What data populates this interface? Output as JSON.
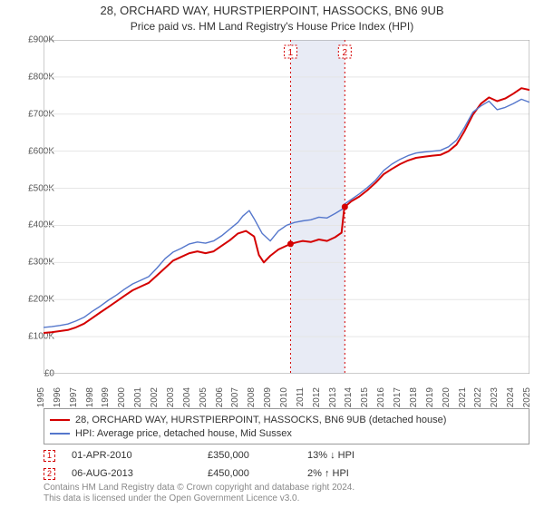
{
  "title": "28, ORCHARD WAY, HURSTPIERPOINT, HASSOCKS, BN6 9UB",
  "subtitle": "Price paid vs. HM Land Registry's House Price Index (HPI)",
  "chart": {
    "type": "line",
    "background_color": "#ffffff",
    "grid_color": "#e5e5e5",
    "axis_color": "#999999",
    "font_family": "Arial",
    "tick_fontsize": 10,
    "title_fontsize": 13,
    "subtitle_fontsize": 12,
    "x": {
      "min": 1995,
      "max": 2025,
      "ticks": [
        1995,
        1996,
        1997,
        1998,
        1999,
        2000,
        2001,
        2002,
        2003,
        2004,
        2005,
        2006,
        2007,
        2008,
        2009,
        2010,
        2011,
        2012,
        2013,
        2014,
        2015,
        2016,
        2017,
        2018,
        2019,
        2020,
        2021,
        2022,
        2023,
        2024,
        2025
      ],
      "label_rotation": -90
    },
    "y": {
      "min": 0,
      "max": 900000,
      "ticks": [
        0,
        100000,
        200000,
        300000,
        400000,
        500000,
        600000,
        700000,
        800000,
        900000
      ],
      "tick_labels": [
        "£0",
        "£100K",
        "£200K",
        "£300K",
        "£400K",
        "£500K",
        "£600K",
        "£700K",
        "£800K",
        "£900K"
      ]
    },
    "shaded_band": {
      "from": 2010.25,
      "to": 2013.6,
      "color": "#e8ebf5"
    },
    "series": [
      {
        "name": "28, ORCHARD WAY, HURSTPIERPOINT, HASSOCKS, BN6 9UB (detached house)",
        "color": "#d40000",
        "line_width": 2,
        "data": [
          [
            1995,
            110000
          ],
          [
            1995.5,
            112000
          ],
          [
            1996,
            115000
          ],
          [
            1996.5,
            118000
          ],
          [
            1997,
            125000
          ],
          [
            1997.5,
            135000
          ],
          [
            1998,
            150000
          ],
          [
            1998.5,
            165000
          ],
          [
            1999,
            180000
          ],
          [
            1999.5,
            195000
          ],
          [
            2000,
            210000
          ],
          [
            2000.5,
            225000
          ],
          [
            2001,
            235000
          ],
          [
            2001.5,
            245000
          ],
          [
            2002,
            265000
          ],
          [
            2002.5,
            285000
          ],
          [
            2003,
            305000
          ],
          [
            2003.5,
            315000
          ],
          [
            2004,
            325000
          ],
          [
            2004.5,
            330000
          ],
          [
            2005,
            325000
          ],
          [
            2005.5,
            330000
          ],
          [
            2006,
            345000
          ],
          [
            2006.5,
            360000
          ],
          [
            2007,
            378000
          ],
          [
            2007.5,
            385000
          ],
          [
            2008,
            370000
          ],
          [
            2008.3,
            320000
          ],
          [
            2008.6,
            300000
          ],
          [
            2009,
            318000
          ],
          [
            2009.5,
            335000
          ],
          [
            2010,
            345000
          ],
          [
            2010.25,
            350000
          ],
          [
            2010.7,
            355000
          ],
          [
            2011,
            358000
          ],
          [
            2011.5,
            355000
          ],
          [
            2012,
            362000
          ],
          [
            2012.5,
            358000
          ],
          [
            2013,
            368000
          ],
          [
            2013.4,
            380000
          ],
          [
            2013.55,
            440000
          ],
          [
            2013.6,
            450000
          ],
          [
            2014,
            465000
          ],
          [
            2014.5,
            478000
          ],
          [
            2015,
            495000
          ],
          [
            2015.5,
            515000
          ],
          [
            2016,
            538000
          ],
          [
            2016.5,
            552000
          ],
          [
            2017,
            565000
          ],
          [
            2017.5,
            575000
          ],
          [
            2018,
            582000
          ],
          [
            2018.5,
            585000
          ],
          [
            2019,
            588000
          ],
          [
            2019.5,
            590000
          ],
          [
            2020,
            600000
          ],
          [
            2020.5,
            618000
          ],
          [
            2021,
            655000
          ],
          [
            2021.5,
            698000
          ],
          [
            2022,
            728000
          ],
          [
            2022.5,
            745000
          ],
          [
            2023,
            735000
          ],
          [
            2023.5,
            742000
          ],
          [
            2024,
            755000
          ],
          [
            2024.5,
            770000
          ],
          [
            2025,
            765000
          ]
        ]
      },
      {
        "name": "HPI: Average price, detached house, Mid Sussex",
        "color": "#5577cc",
        "line_width": 1.4,
        "data": [
          [
            1995,
            125000
          ],
          [
            1995.5,
            127000
          ],
          [
            1996,
            130000
          ],
          [
            1996.5,
            134000
          ],
          [
            1997,
            142000
          ],
          [
            1997.5,
            152000
          ],
          [
            1998,
            168000
          ],
          [
            1998.5,
            182000
          ],
          [
            1999,
            198000
          ],
          [
            1999.5,
            212000
          ],
          [
            2000,
            228000
          ],
          [
            2000.5,
            242000
          ],
          [
            2001,
            252000
          ],
          [
            2001.5,
            262000
          ],
          [
            2002,
            285000
          ],
          [
            2002.5,
            310000
          ],
          [
            2003,
            328000
          ],
          [
            2003.5,
            338000
          ],
          [
            2004,
            350000
          ],
          [
            2004.5,
            355000
          ],
          [
            2005,
            352000
          ],
          [
            2005.5,
            358000
          ],
          [
            2006,
            372000
          ],
          [
            2006.5,
            390000
          ],
          [
            2007,
            408000
          ],
          [
            2007.3,
            425000
          ],
          [
            2007.7,
            440000
          ],
          [
            2008,
            418000
          ],
          [
            2008.5,
            378000
          ],
          [
            2009,
            358000
          ],
          [
            2009.5,
            385000
          ],
          [
            2010,
            400000
          ],
          [
            2010.5,
            408000
          ],
          [
            2011,
            412000
          ],
          [
            2011.5,
            415000
          ],
          [
            2012,
            422000
          ],
          [
            2012.5,
            420000
          ],
          [
            2013,
            432000
          ],
          [
            2013.5,
            445000
          ],
          [
            2013.6,
            458000
          ],
          [
            2014,
            470000
          ],
          [
            2014.5,
            485000
          ],
          [
            2015,
            502000
          ],
          [
            2015.5,
            522000
          ],
          [
            2016,
            548000
          ],
          [
            2016.5,
            565000
          ],
          [
            2017,
            578000
          ],
          [
            2017.5,
            588000
          ],
          [
            2018,
            595000
          ],
          [
            2018.5,
            598000
          ],
          [
            2019,
            600000
          ],
          [
            2019.5,
            602000
          ],
          [
            2020,
            612000
          ],
          [
            2020.5,
            630000
          ],
          [
            2021,
            665000
          ],
          [
            2021.5,
            705000
          ],
          [
            2022,
            722000
          ],
          [
            2022.5,
            735000
          ],
          [
            2023,
            712000
          ],
          [
            2023.5,
            718000
          ],
          [
            2024,
            728000
          ],
          [
            2024.5,
            740000
          ],
          [
            2025,
            732000
          ]
        ]
      }
    ],
    "sale_markers": [
      {
        "label": "1",
        "x": 2010.25,
        "y": 350000
      },
      {
        "label": "2",
        "x": 2013.6,
        "y": 450000
      }
    ]
  },
  "legend": {
    "border_color": "#999999",
    "items": [
      {
        "color": "#d40000",
        "text": "28, ORCHARD WAY, HURSTPIERPOINT, HASSOCKS, BN6 9UB (detached house)"
      },
      {
        "color": "#5577cc",
        "text": "HPI: Average price, detached house, Mid Sussex"
      }
    ]
  },
  "sales": [
    {
      "label": "1",
      "date": "01-APR-2010",
      "price": "£350,000",
      "pct": "13%",
      "arrow": "↓",
      "vs": "HPI"
    },
    {
      "label": "2",
      "date": "06-AUG-2013",
      "price": "£450,000",
      "pct": "2%",
      "arrow": "↑",
      "vs": "HPI"
    }
  ],
  "footer": {
    "line1": "Contains HM Land Registry data © Crown copyright and database right 2024.",
    "line2": "This data is licensed under the Open Government Licence v3.0."
  },
  "colors": {
    "marker_border": "#d40000",
    "marker_text": "#d40000",
    "footer_text": "#888888"
  }
}
